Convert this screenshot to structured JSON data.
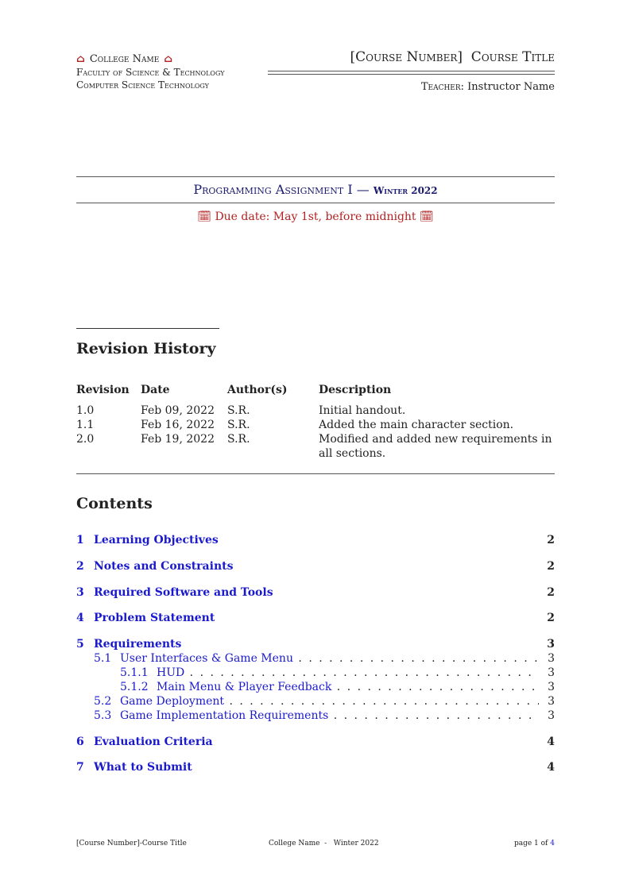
{
  "header": {
    "college": "College Name",
    "faculty": "Faculty of Science & Technology",
    "program": "Computer Science Technology",
    "course": "[Course Number]  Course Title",
    "teacher_label": "Teacher:",
    "teacher": "Instructor Name"
  },
  "title": {
    "main": "Programming Assignment I —",
    "term": "Winter 2022",
    "due": "Due date: May 1st, before midnight"
  },
  "revision": {
    "heading": "Revision History",
    "columns": [
      "Revision",
      "Date",
      "Author(s)",
      "Description"
    ],
    "rows": [
      [
        "1.0",
        "Feb 09, 2022",
        "S.R.",
        "Initial handout."
      ],
      [
        "1.1",
        "Feb 16, 2022",
        "S.R.",
        "Added the main character section."
      ],
      [
        "2.0",
        "Feb 19, 2022",
        "S.R.",
        "Modified and added new requirements in all sections."
      ]
    ]
  },
  "contents": {
    "heading": "Contents",
    "entries": [
      {
        "num": "1",
        "title": "Learning Objectives",
        "page": "2"
      },
      {
        "num": "2",
        "title": "Notes and Constraints",
        "page": "2"
      },
      {
        "num": "3",
        "title": "Required Software and Tools",
        "page": "2"
      },
      {
        "num": "4",
        "title": "Problem Statement",
        "page": "2"
      },
      {
        "num": "5",
        "title": "Requirements",
        "page": "3"
      },
      {
        "num": "5.1",
        "title": "User Interfaces & Game Menu",
        "page": "3"
      },
      {
        "num": "5.1.1",
        "title": "HUD",
        "page": "3"
      },
      {
        "num": "5.1.2",
        "title": "Main Menu & Player Feedback",
        "page": "3"
      },
      {
        "num": "5.2",
        "title": "Game Deployment",
        "page": "3"
      },
      {
        "num": "5.3",
        "title": "Game Implementation Requirements",
        "page": "3"
      },
      {
        "num": "6",
        "title": "Evaluation Criteria",
        "page": "4"
      },
      {
        "num": "7",
        "title": "What to Submit",
        "page": "4"
      }
    ]
  },
  "footer": {
    "left": "[Course Number]-Course Title",
    "center": "College Name  -   Winter 2022",
    "page_prefix": "page 1 of",
    "total": "4"
  },
  "colors": {
    "accent": "#b22222",
    "title": "#1a1a6e",
    "link": "#1a1acc"
  }
}
